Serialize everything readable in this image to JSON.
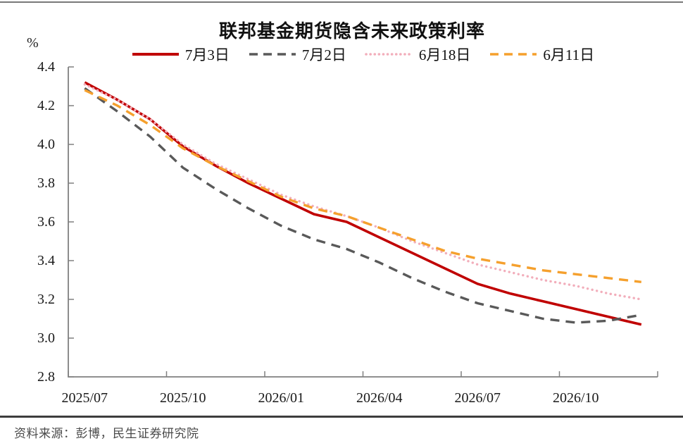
{
  "page": {
    "title": "联邦基金期货隐含未来政策利率",
    "y_axis_unit": "%",
    "source": "资料来源：彭博，民生证券研究院"
  },
  "chart_data": {
    "type": "line",
    "title": "联邦基金期货隐含未来政策利率",
    "xlabel": "",
    "ylabel": "%",
    "ylim": [
      2.8,
      4.4
    ],
    "y_ticks": [
      "4.4",
      "4.2",
      "4.0",
      "3.8",
      "3.6",
      "3.4",
      "3.2",
      "3.0",
      "2.8"
    ],
    "grid": false,
    "legend_position": "top",
    "categories": [
      "2025/07",
      "2025/08",
      "2025/09",
      "2025/10",
      "2025/11",
      "2025/12",
      "2026/01",
      "2026/02",
      "2026/03",
      "2026/04",
      "2026/05",
      "2026/06",
      "2026/07",
      "2026/08",
      "2026/09",
      "2026/10",
      "2026/11",
      "2026/12"
    ],
    "x_tick_labels": [
      "2025/07",
      "2025/10",
      "2026/01",
      "2026/04",
      "2026/07",
      "2026/10"
    ],
    "x_tick_label_category_indices": [
      0,
      3,
      6,
      9,
      12,
      15
    ],
    "series": [
      {
        "name": "7月3日",
        "color": "#C00000",
        "style": "solid",
        "values": [
          4.32,
          4.23,
          4.13,
          3.99,
          3.89,
          3.8,
          3.72,
          3.64,
          3.6,
          3.52,
          3.44,
          3.36,
          3.28,
          3.23,
          3.19,
          3.15,
          3.11,
          3.07
        ]
      },
      {
        "name": "7月2日",
        "color": "#595959",
        "style": "dashed",
        "values": [
          4.29,
          4.17,
          4.04,
          3.88,
          3.77,
          3.67,
          3.58,
          3.51,
          3.46,
          3.39,
          3.31,
          3.24,
          3.18,
          3.14,
          3.1,
          3.08,
          3.09,
          3.12
        ]
      },
      {
        "name": "6月18日",
        "color": "#F2AEBB",
        "style": "dotted",
        "values": [
          4.31,
          4.23,
          4.13,
          4.0,
          3.9,
          3.82,
          3.74,
          3.68,
          3.63,
          3.57,
          3.5,
          3.44,
          3.38,
          3.34,
          3.3,
          3.27,
          3.23,
          3.2
        ]
      },
      {
        "name": "6月11日",
        "color": "#F5A02D",
        "style": "dashed",
        "values": [
          4.28,
          4.2,
          4.1,
          3.98,
          3.89,
          3.81,
          3.73,
          3.67,
          3.63,
          3.57,
          3.51,
          3.45,
          3.41,
          3.38,
          3.35,
          3.33,
          3.31,
          3.29
        ]
      }
    ]
  }
}
